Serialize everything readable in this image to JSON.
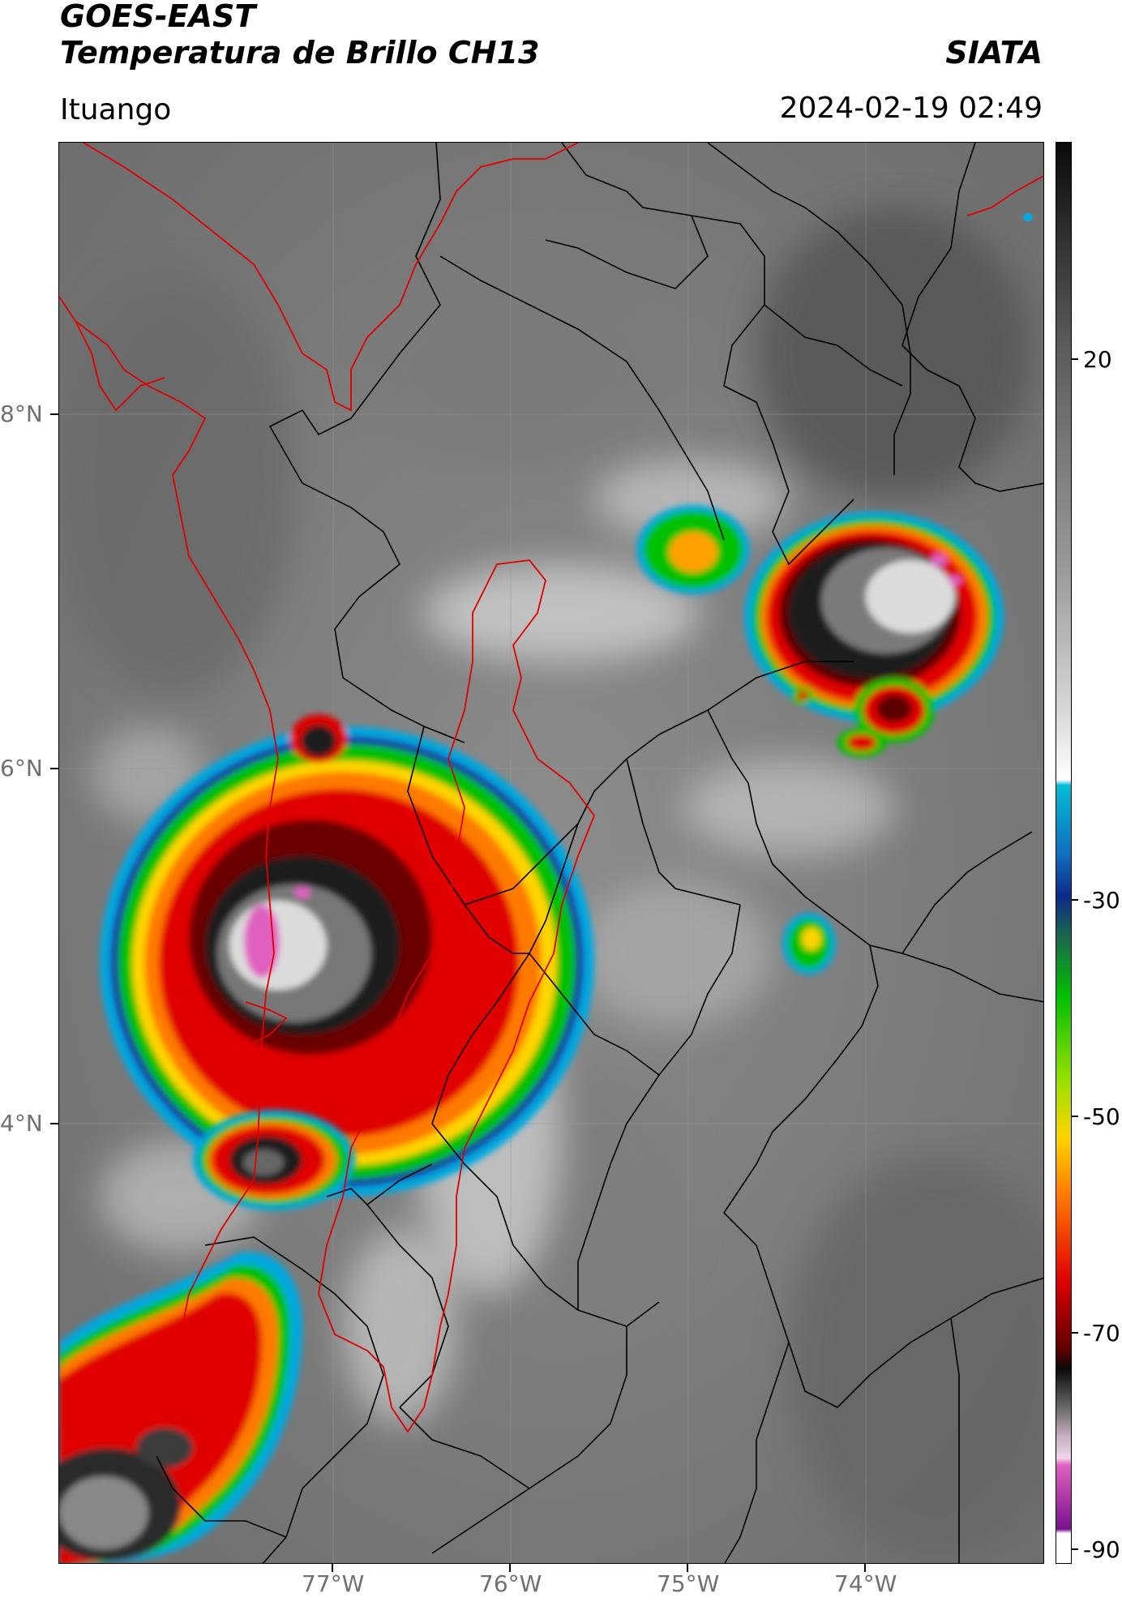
{
  "header": {
    "satellite": "GOES-EAST",
    "product": "Temperatura de Brillo CH13",
    "brand": "SIATA",
    "region": "Ituango",
    "datetime": "2024-02-19 02:49"
  },
  "map": {
    "lat_labels": [
      "8°N",
      "6°N",
      "4°N"
    ],
    "lon_labels": [
      "77°W",
      "76°W",
      "75°W",
      "74°W"
    ]
  },
  "colorbar": {
    "labels": [
      "20",
      "-30",
      "-50",
      "-70",
      "-90"
    ],
    "colors": {
      "gray_top": "#0a0a0a",
      "gray_mid": "#8a8a8a",
      "white": "#ffffff",
      "cyan": "#00bcd4",
      "blue": "#0d2a8a",
      "green": "#00c000",
      "yellow": "#ffd400",
      "orange": "#ff7a00",
      "red": "#e00000",
      "darkred": "#5a0000",
      "pink": "#e060c0",
      "purple": "#7a1090"
    }
  }
}
